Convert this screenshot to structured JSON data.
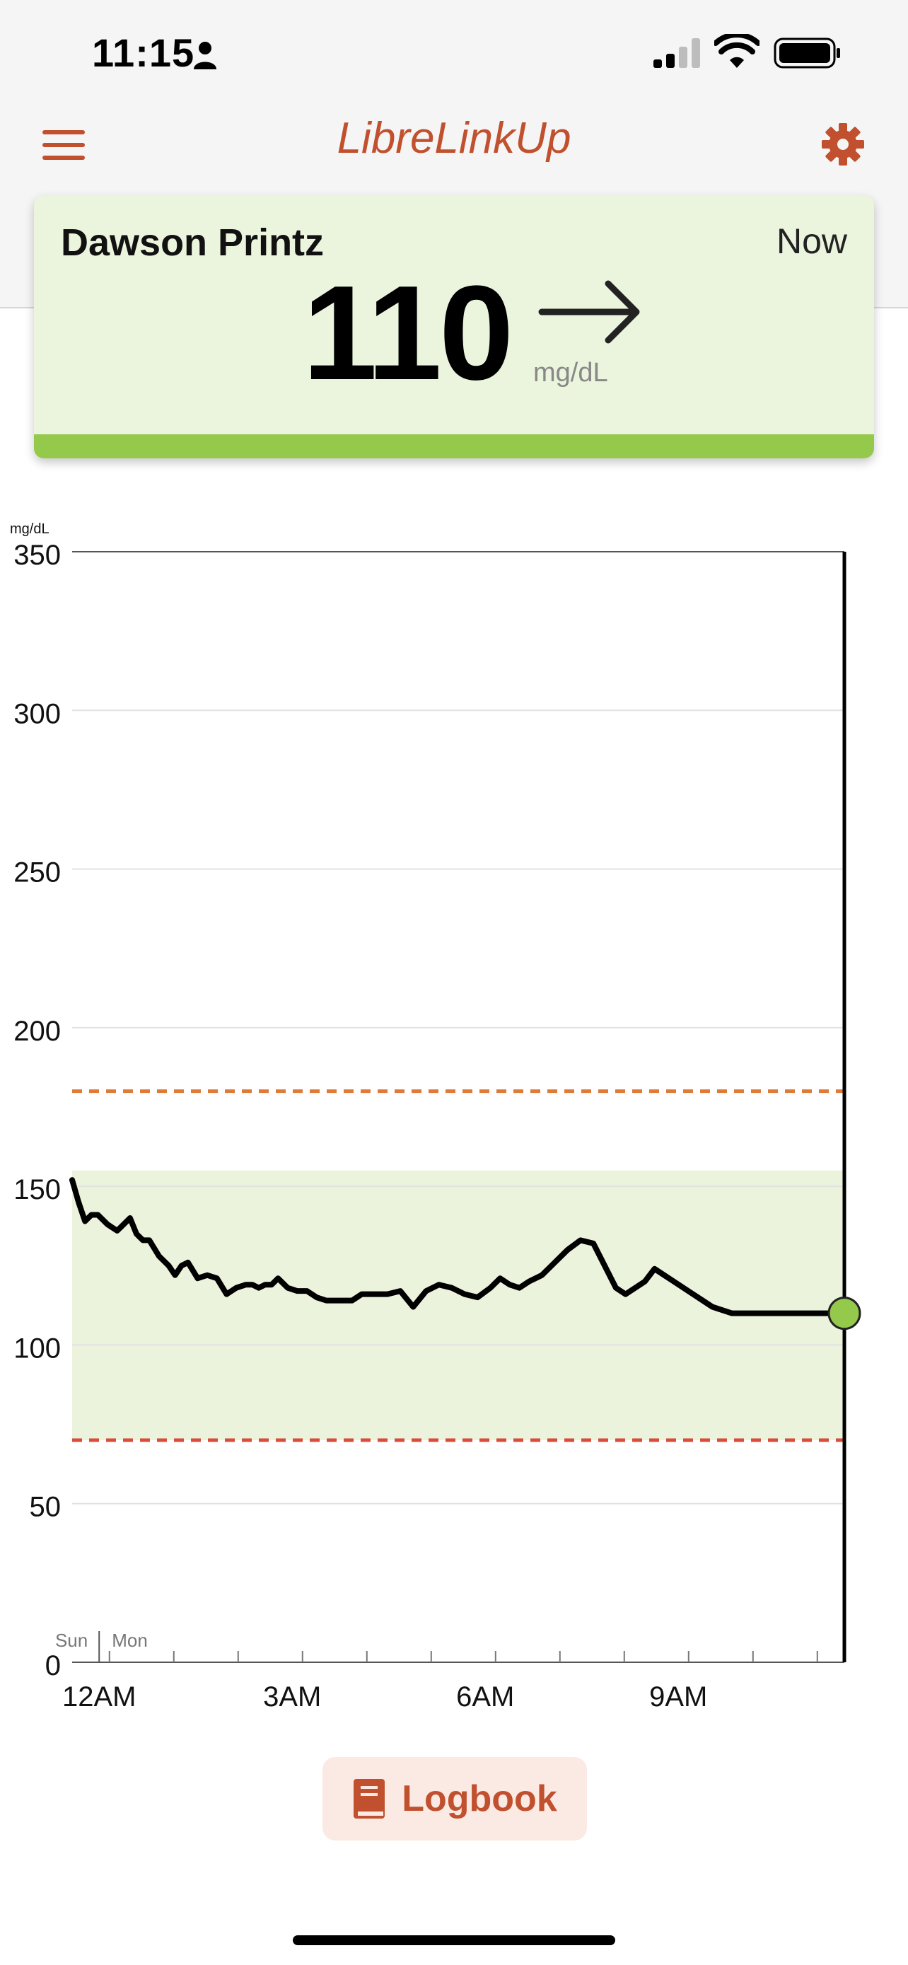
{
  "status_bar": {
    "time": "11:15",
    "icons": [
      "person-icon",
      "signal-icon",
      "wifi-icon",
      "battery-icon"
    ]
  },
  "header": {
    "title": "LibreLinkUp",
    "menu_icon": "menu-icon",
    "settings_icon": "gear-icon"
  },
  "card": {
    "patient_name": "Dawson Printz",
    "time_label": "Now",
    "glucose_value": "110",
    "glucose_unit": "mg/dL",
    "trend": "arrow-right-icon"
  },
  "chart_data": {
    "type": "line",
    "ylabel": "mg/dL",
    "ylim": [
      0,
      350
    ],
    "y_ticks": [
      "0",
      "50",
      "100",
      "150",
      "200",
      "250",
      "300",
      "350"
    ],
    "x_ticks": [
      "12AM",
      "3AM",
      "6AM",
      "9AM"
    ],
    "day_labels": [
      "Sun",
      "Mon"
    ],
    "target_range": [
      70,
      155
    ],
    "high_threshold": 180,
    "low_threshold": 70,
    "x_unit": "hours since 11:35PM Sun",
    "series": [
      {
        "x": [
          0.0,
          0.1,
          0.2,
          0.3,
          0.4,
          0.55,
          0.7,
          0.8,
          0.9,
          1.0,
          1.1,
          1.2,
          1.35,
          1.5,
          1.6,
          1.7,
          1.8,
          1.95,
          2.1,
          2.25,
          2.4,
          2.55,
          2.7,
          2.8,
          2.9,
          3.0,
          3.1,
          3.2,
          3.35,
          3.5,
          3.65,
          3.8,
          3.95,
          4.1,
          4.2,
          4.35,
          4.5,
          4.7,
          4.9,
          5.1,
          5.3,
          5.5,
          5.7,
          5.9,
          6.1,
          6.3,
          6.5,
          6.65,
          6.8,
          6.95,
          7.1,
          7.3,
          7.5,
          7.7,
          7.9,
          8.1,
          8.3,
          8.45,
          8.6,
          8.75,
          8.9,
          9.05,
          9.2,
          9.35,
          9.5,
          9.65,
          9.8,
          9.95,
          10.1,
          10.25,
          10.4,
          10.55,
          10.7,
          10.85,
          11.0,
          11.15,
          11.3,
          11.45,
          11.6,
          11.75,
          11.9,
          12.0
        ],
        "values": [
          152,
          145,
          139,
          141,
          141,
          138,
          136,
          138,
          140,
          135,
          133,
          133,
          128,
          125,
          122,
          125,
          126,
          121,
          122,
          121,
          116,
          118,
          119,
          119,
          118,
          119,
          119,
          121,
          118,
          117,
          117,
          115,
          114,
          114,
          114,
          114,
          116,
          116,
          116,
          117,
          112,
          117,
          119,
          118,
          116,
          115,
          118,
          121,
          119,
          118,
          120,
          122,
          126,
          130,
          133,
          132,
          124,
          118,
          116,
          118,
          120,
          124,
          122,
          120,
          118,
          116,
          114,
          112,
          111,
          110,
          110,
          110,
          110,
          110,
          110,
          110,
          110,
          110,
          110,
          110,
          110,
          110
        ],
        "current_value": 110
      }
    ]
  },
  "logbook": {
    "label": "Logbook",
    "icon": "book-icon"
  },
  "colors": {
    "brand": "#c1502e",
    "in_range": "#95c94c",
    "card_bg": "#ebf4dc",
    "target_band": "#ebf3dd",
    "high_line": "#e07a36",
    "low_line": "#d94c3a"
  }
}
